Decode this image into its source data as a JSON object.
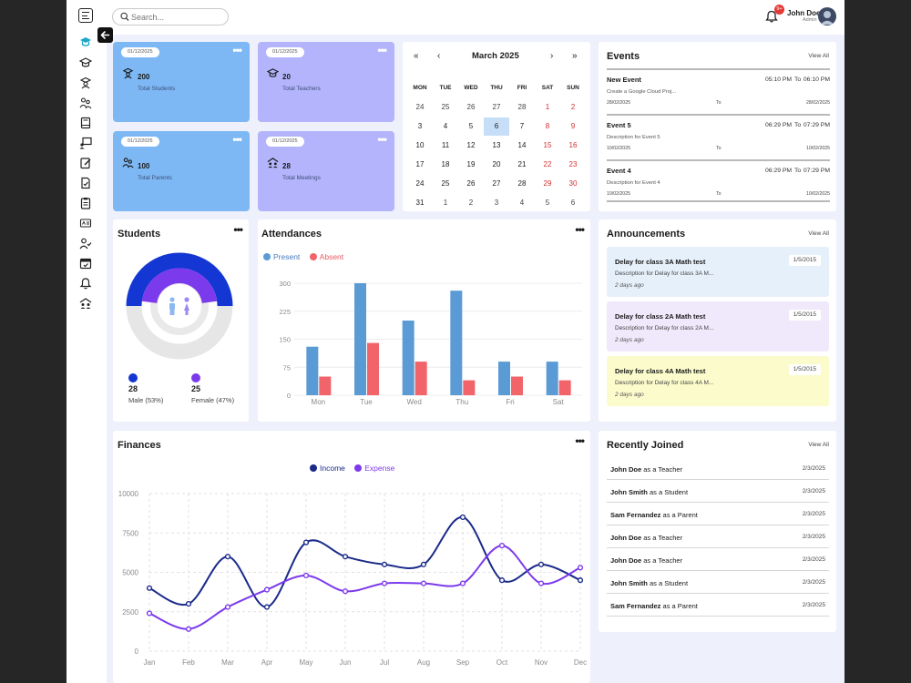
{
  "header": {
    "search_placeholder": "Search...",
    "notification_count": "9+",
    "user_name": "John Doe",
    "user_role": "Admin"
  },
  "sidebar": {
    "icons": [
      "graduation-cap-icon",
      "school-icon",
      "student-icon",
      "parents-icon",
      "book-icon",
      "teacher-board-icon",
      "assignment-icon",
      "exam-icon",
      "clipboard-icon",
      "result-icon",
      "attendance-icon",
      "calendar-event-icon",
      "announcement-icon",
      "logout-icon"
    ]
  },
  "stats": [
    {
      "date": "01/12/2025",
      "value": "200",
      "label": "Total Students",
      "icon": "student-icon",
      "color": "#7db8f5"
    },
    {
      "date": "01/12/2025",
      "value": "20",
      "label": "Total Teachers",
      "icon": "teacher-icon",
      "color": "#b3b4fb"
    },
    {
      "date": "01/12/2025",
      "value": "100",
      "label": "Total Parents",
      "icon": "parents-icon",
      "color": "#7db8f5"
    },
    {
      "date": "01/12/2025",
      "value": "28",
      "label": "Total Meetings",
      "icon": "meeting-icon",
      "color": "#b3b4fb"
    }
  ],
  "calendar": {
    "title": "March 2025",
    "nav": {
      "prev_year": "«",
      "prev": "‹",
      "next": "›",
      "next_year": "»"
    },
    "weekdays": [
      "MON",
      "TUE",
      "WED",
      "THU",
      "FRI",
      "SAT",
      "SUN"
    ],
    "weeks": [
      [
        "24",
        "25",
        "26",
        "27",
        "28",
        "1",
        "2"
      ],
      [
        "3",
        "4",
        "5",
        "6",
        "7",
        "8",
        "9"
      ],
      [
        "10",
        "11",
        "12",
        "13",
        "14",
        "15",
        "16"
      ],
      [
        "17",
        "18",
        "19",
        "20",
        "21",
        "22",
        "23"
      ],
      [
        "24",
        "25",
        "26",
        "27",
        "28",
        "29",
        "30"
      ],
      [
        "31",
        "1",
        "2",
        "3",
        "4",
        "5",
        "6"
      ]
    ],
    "selected": "6",
    "weekend_color": "#d32f2f",
    "selected_color": "#c6def7"
  },
  "events": {
    "title": "Events",
    "view_all": "View All",
    "items": [
      {
        "title": "New Event",
        "desc": "Create a Google Cloud Proj...",
        "start_time": "05:10 PM",
        "to": "To",
        "end_time": "06:10 PM",
        "start_date": "28/02/2025",
        "to_date": "To",
        "end_date": "28/02/2025"
      },
      {
        "title": "Event 5",
        "desc": "Description for Event 5",
        "start_time": "06:29 PM",
        "to": "To",
        "end_time": "07:29 PM",
        "start_date": "10/02/2025",
        "to_date": "To",
        "end_date": "10/02/2025"
      },
      {
        "title": "Event 4",
        "desc": "Description for Event 4",
        "start_time": "06:29 PM",
        "to": "To",
        "end_time": "07:29 PM",
        "start_date": "10/02/2025",
        "to_date": "To",
        "end_date": "10/02/2025"
      }
    ]
  },
  "students": {
    "title": "Students",
    "male_count": "28",
    "male_label": "Male (53%)",
    "female_count": "25",
    "female_label": "Female (47%)",
    "male_color": "#1437d3",
    "female_color": "#7c3aed"
  },
  "attendance": {
    "title": "Attendances",
    "legend_present": "Present",
    "legend_absent": "Absent"
  },
  "announcements": {
    "title": "Announcements",
    "view_all": "View All",
    "items": [
      {
        "title": "Delay for class 3A Math test",
        "desc": "Description for Delay for class 3A M...",
        "ago": "2 days ago",
        "date": "1/5/2015",
        "color": "#e6f0fb"
      },
      {
        "title": "Delay for class 2A Math test",
        "desc": "Description for Delay for class 2A M...",
        "ago": "2 days ago",
        "date": "1/5/2015",
        "color": "#efe9fb"
      },
      {
        "title": "Delay for class 4A Math test",
        "desc": "Description for Delay for class 4A M...",
        "ago": "2 days ago",
        "date": "1/5/2015",
        "color": "#fbfbcc"
      }
    ]
  },
  "finances": {
    "title": "Finances",
    "legend_income": "Income",
    "legend_expense": "Expense"
  },
  "recently_joined": {
    "title": "Recently Joined",
    "view_all": "View All",
    "items": [
      {
        "name": "John Doe",
        "role_text": "as a Teacher",
        "date": "2/3/2025"
      },
      {
        "name": "John Smith",
        "role_text": "as a Student",
        "date": "2/3/2025"
      },
      {
        "name": "Sam Fernandez",
        "role_text": "as a Parent",
        "date": "2/3/2025"
      },
      {
        "name": "John Doe",
        "role_text": "as a Teacher",
        "date": "2/3/2025"
      },
      {
        "name": "John Doe",
        "role_text": "as a Teacher",
        "date": "2/3/2025"
      },
      {
        "name": "John Smith",
        "role_text": "as a Student",
        "date": "2/3/2025"
      },
      {
        "name": "Sam Fernandez",
        "role_text": "as a Parent",
        "date": "2/3/2025"
      }
    ]
  },
  "chart_data": [
    {
      "type": "pie",
      "categories": [
        "Male",
        "Female"
      ],
      "values": [
        53,
        47
      ],
      "colors": [
        "#1437d3",
        "#7c3aed"
      ]
    },
    {
      "type": "bar",
      "categories": [
        "Mon",
        "Tue",
        "Wed",
        "Thu",
        "Fri",
        "Sat"
      ],
      "series": [
        {
          "name": "Present",
          "values": [
            130,
            300,
            200,
            280,
            90,
            90
          ],
          "color": "#5b9bd5"
        },
        {
          "name": "Absent",
          "values": [
            50,
            140,
            90,
            40,
            50,
            40
          ],
          "color": "#f0646a"
        }
      ],
      "yticks": [
        0,
        75,
        150,
        225,
        300
      ],
      "ylim": [
        0,
        320
      ],
      "grid": true,
      "legend": "top-left"
    },
    {
      "type": "line",
      "categories": [
        "Jan",
        "Feb",
        "Mar",
        "Apr",
        "May",
        "Jun",
        "Jul",
        "Aug",
        "Sep",
        "Oct",
        "Nov",
        "Dec"
      ],
      "series": [
        {
          "name": "Income",
          "values": [
            4000,
            3000,
            6000,
            2800,
            6900,
            6000,
            5500,
            5500,
            8500,
            4500,
            5500,
            4500
          ],
          "color": "#1a2a8a"
        },
        {
          "name": "Expense",
          "values": [
            2400,
            1400,
            2800,
            3900,
            4800,
            3800,
            4300,
            4300,
            4300,
            6700,
            4300,
            5300
          ],
          "color": "#7c3aed"
        }
      ],
      "yticks": [
        0,
        2500,
        5000,
        7500,
        10000
      ],
      "ylim": [
        0,
        10000
      ],
      "grid": true,
      "legend": "top-center"
    }
  ]
}
